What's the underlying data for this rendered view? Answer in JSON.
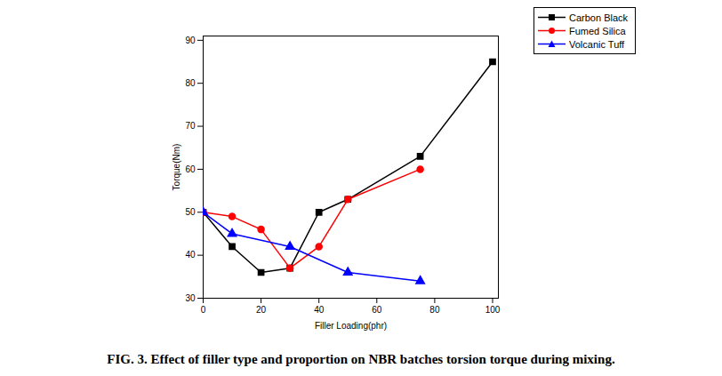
{
  "chart_data": {
    "type": "line",
    "title": "FIG. 3. Effect of filler type and proportion on NBR batches torsion torque during mixing.",
    "x_label": "Filler Loading(phr)",
    "y_label": "Torque(Nm)",
    "xlim": [
      0,
      102
    ],
    "xticks": [
      0,
      20,
      40,
      60,
      80,
      100
    ],
    "ylim": [
      30,
      91
    ],
    "yticks": [
      30,
      40,
      50,
      60,
      70,
      80,
      90
    ],
    "legend": "top-right",
    "series": [
      {
        "name": "Carbon Black",
        "color": "#000000",
        "marker": "square",
        "x": [
          0,
          10,
          20,
          30,
          40,
          50,
          75,
          100
        ],
        "values": [
          50,
          42,
          36,
          37,
          50,
          53,
          63,
          85
        ]
      },
      {
        "name": "Fumed Silica",
        "color": "#ff0000",
        "marker": "circle",
        "x": [
          0,
          10,
          20,
          30,
          40,
          50,
          75
        ],
        "values": [
          50,
          49,
          46,
          37,
          42,
          53,
          60
        ]
      },
      {
        "name": "Volcanic Tuff",
        "color": "#0000ff",
        "marker": "triangle",
        "x": [
          0,
          10,
          30,
          50,
          75
        ],
        "values": [
          50,
          45,
          42,
          36,
          34
        ]
      }
    ]
  }
}
